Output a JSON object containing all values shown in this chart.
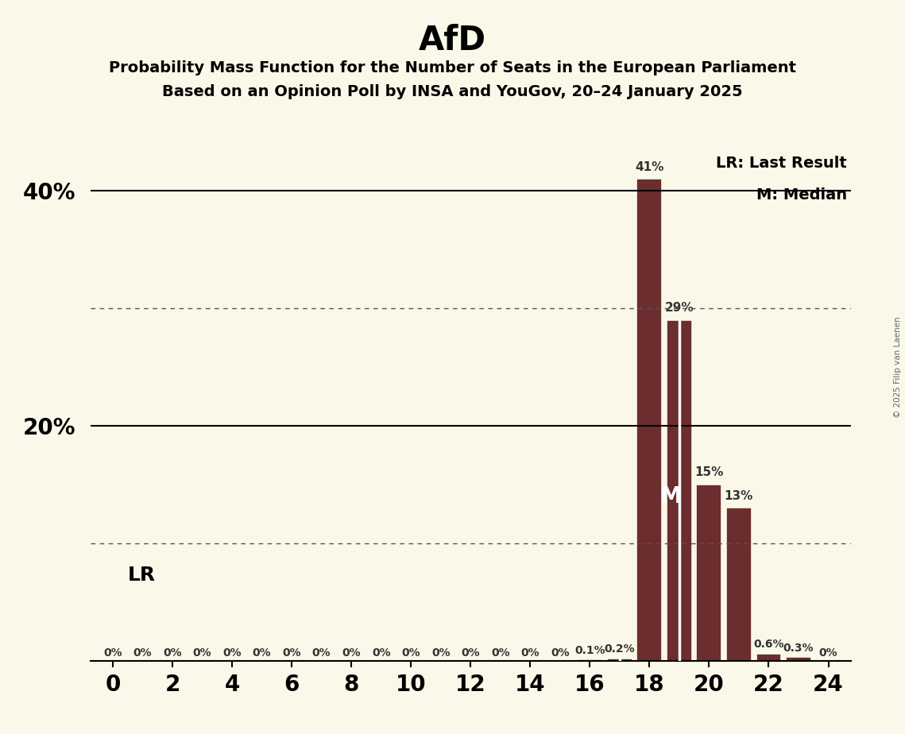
{
  "title": "AfD",
  "subtitle1": "Probability Mass Function for the Number of Seats in the European Parliament",
  "subtitle2": "Based on an Opinion Poll by INSA and YouGov, 20–24 January 2025",
  "copyright": "© 2025 Filip van Laenen",
  "bar_color": "#6B2D2D",
  "background_color": "#FAF8E8",
  "seats": [
    0,
    1,
    2,
    3,
    4,
    5,
    6,
    7,
    8,
    9,
    10,
    11,
    12,
    13,
    14,
    15,
    16,
    17,
    18,
    19,
    20,
    21,
    22,
    23,
    24
  ],
  "probabilities": [
    0.0,
    0.0,
    0.0,
    0.0,
    0.0,
    0.0,
    0.0,
    0.0,
    0.0,
    0.0,
    0.0,
    0.0,
    0.0,
    0.0,
    0.0,
    0.0,
    0.1,
    0.2,
    41.0,
    29.0,
    15.0,
    13.0,
    0.6,
    0.3,
    0.0
  ],
  "labels": [
    "0%",
    "0%",
    "0%",
    "0%",
    "0%",
    "0%",
    "0%",
    "0%",
    "0%",
    "0%",
    "0%",
    "0%",
    "0%",
    "0%",
    "0%",
    "0%",
    "0.1%",
    "0.2%",
    "41%",
    "29%",
    "15%",
    "13%",
    "0.6%",
    "0.3%",
    "0%"
  ],
  "ylim": [
    0,
    45
  ],
  "solid_ylines": [
    20.0,
    40.0
  ],
  "dotted_ylines": [
    10.0,
    30.0
  ],
  "lr_seat": 17,
  "median_seat": 19,
  "lr_label": "LR",
  "median_label": "M",
  "legend_lr": "LR: Last Result",
  "legend_m": "M: Median",
  "title_fontsize": 30,
  "subtitle_fontsize": 14,
  "bar_label_fontsize": 11,
  "axis_tick_fontsize": 20,
  "ytick_labels_map": {
    "0": "",
    "10": "",
    "20": "20%",
    "30": "",
    "40": "40%"
  },
  "legend_fontsize": 14
}
